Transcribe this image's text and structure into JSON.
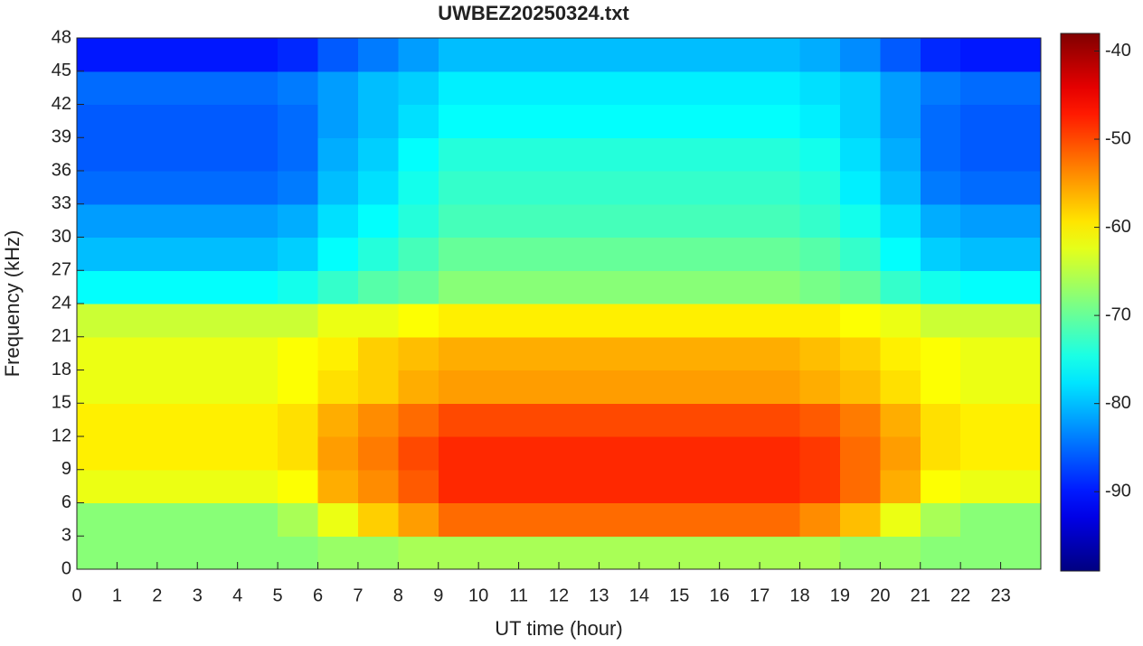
{
  "chart_data": {
    "type": "heatmap",
    "title": "UWBEZ20250324.txt",
    "xlabel": "UT time (hour)",
    "ylabel": "Frequency (kHz)",
    "colormap": "jet",
    "x_bins": [
      0,
      1,
      2,
      3,
      4,
      5,
      6,
      7,
      8,
      9,
      10,
      11,
      12,
      13,
      14,
      15,
      16,
      17,
      18,
      19,
      20,
      21,
      22,
      23,
      24
    ],
    "y_bins": [
      0,
      3,
      6,
      9,
      12,
      15,
      18,
      21,
      24,
      27,
      30,
      33,
      36,
      39,
      42,
      45,
      48
    ],
    "values": [
      [
        -68,
        -68,
        -68,
        -68,
        -68,
        -68,
        -67,
        -67,
        -66,
        -66,
        -66,
        -66,
        -66,
        -66,
        -66,
        -66,
        -66,
        -66,
        -66,
        -67,
        -67,
        -68,
        -68,
        -68
      ],
      [
        -68,
        -68,
        -68,
        -68,
        -68,
        -66,
        -62,
        -58,
        -55,
        -52,
        -52,
        -52,
        -52,
        -52,
        -52,
        -52,
        -52,
        -52,
        -54,
        -57,
        -62,
        -66,
        -68,
        -68
      ],
      [
        -62,
        -62,
        -62,
        -62,
        -62,
        -61,
        -56,
        -54,
        -51,
        -48,
        -48,
        -48,
        -48,
        -48,
        -48,
        -48,
        -48,
        -48,
        -49,
        -52,
        -56,
        -61,
        -62,
        -62
      ],
      [
        -60,
        -60,
        -60,
        -60,
        -60,
        -59,
        -55,
        -53,
        -50,
        -48,
        -48,
        -48,
        -48,
        -48,
        -48,
        -48,
        -48,
        -48,
        -49,
        -52,
        -55,
        -59,
        -60,
        -60
      ],
      [
        -60,
        -60,
        -60,
        -60,
        -60,
        -59,
        -56,
        -54,
        -52,
        -50,
        -50,
        -50,
        -50,
        -50,
        -50,
        -50,
        -50,
        -50,
        -51,
        -53,
        -56,
        -59,
        -60,
        -60
      ],
      [
        -62,
        -62,
        -62,
        -62,
        -62,
        -61,
        -59,
        -58,
        -56,
        -55,
        -55,
        -55,
        -55,
        -55,
        -55,
        -55,
        -55,
        -55,
        -56,
        -57,
        -59,
        -61,
        -62,
        -62
      ],
      [
        -62,
        -62,
        -62,
        -62,
        -62,
        -61,
        -60,
        -58,
        -57,
        -56,
        -56,
        -56,
        -56,
        -56,
        -56,
        -56,
        -56,
        -56,
        -57,
        -58,
        -60,
        -61,
        -62,
        -62
      ],
      [
        -64,
        -64,
        -64,
        -64,
        -64,
        -64,
        -62,
        -62,
        -61,
        -60,
        -60,
        -60,
        -60,
        -60,
        -60,
        -60,
        -60,
        -60,
        -60,
        -61,
        -62,
        -64,
        -64,
        -64
      ],
      [
        -76,
        -76,
        -76,
        -76,
        -76,
        -75,
        -73,
        -71,
        -70,
        -68,
        -68,
        -68,
        -68,
        -68,
        -68,
        -68,
        -68,
        -68,
        -69,
        -70,
        -73,
        -75,
        -76,
        -76
      ],
      [
        -80,
        -80,
        -80,
        -80,
        -80,
        -79,
        -76,
        -74,
        -72,
        -70,
        -70,
        -70,
        -70,
        -70,
        -70,
        -70,
        -70,
        -70,
        -71,
        -73,
        -76,
        -79,
        -80,
        -80
      ],
      [
        -82,
        -82,
        -82,
        -82,
        -82,
        -81,
        -78,
        -76,
        -74,
        -72,
        -72,
        -72,
        -72,
        -72,
        -72,
        -72,
        -72,
        -72,
        -73,
        -75,
        -78,
        -81,
        -82,
        -82
      ],
      [
        -85,
        -85,
        -85,
        -85,
        -85,
        -84,
        -80,
        -78,
        -75,
        -73,
        -73,
        -73,
        -73,
        -73,
        -73,
        -73,
        -73,
        -73,
        -74,
        -77,
        -80,
        -84,
        -85,
        -85
      ],
      [
        -86,
        -86,
        -86,
        -86,
        -86,
        -85,
        -81,
        -79,
        -76,
        -74,
        -74,
        -74,
        -74,
        -74,
        -74,
        -74,
        -74,
        -74,
        -75,
        -78,
        -81,
        -85,
        -86,
        -86
      ],
      [
        -86,
        -86,
        -86,
        -86,
        -86,
        -85,
        -82,
        -80,
        -78,
        -76,
        -76,
        -76,
        -76,
        -76,
        -76,
        -76,
        -76,
        -76,
        -77,
        -79,
        -82,
        -85,
        -86,
        -86
      ],
      [
        -85,
        -85,
        -85,
        -85,
        -85,
        -84,
        -82,
        -80,
        -79,
        -77,
        -77,
        -77,
        -77,
        -77,
        -77,
        -77,
        -77,
        -77,
        -78,
        -79,
        -82,
        -84,
        -85,
        -85
      ],
      [
        -90,
        -90,
        -90,
        -90,
        -90,
        -89,
        -86,
        -84,
        -82,
        -80,
        -80,
        -80,
        -80,
        -80,
        -80,
        -80,
        -80,
        -80,
        -81,
        -83,
        -86,
        -89,
        -90,
        -90
      ]
    ],
    "xlim": [
      0,
      24
    ],
    "xticks": [
      0,
      1,
      2,
      3,
      4,
      5,
      6,
      7,
      8,
      9,
      10,
      11,
      12,
      13,
      14,
      15,
      16,
      17,
      18,
      19,
      20,
      21,
      22,
      23
    ],
    "ylim": [
      0,
      48
    ],
    "yticks": [
      0,
      3,
      6,
      9,
      12,
      15,
      18,
      21,
      24,
      27,
      30,
      33,
      36,
      39,
      42,
      45,
      48
    ],
    "clim": [
      -99,
      -38
    ],
    "cticks": [
      -90,
      -80,
      -70,
      -60,
      -50,
      -40
    ]
  }
}
